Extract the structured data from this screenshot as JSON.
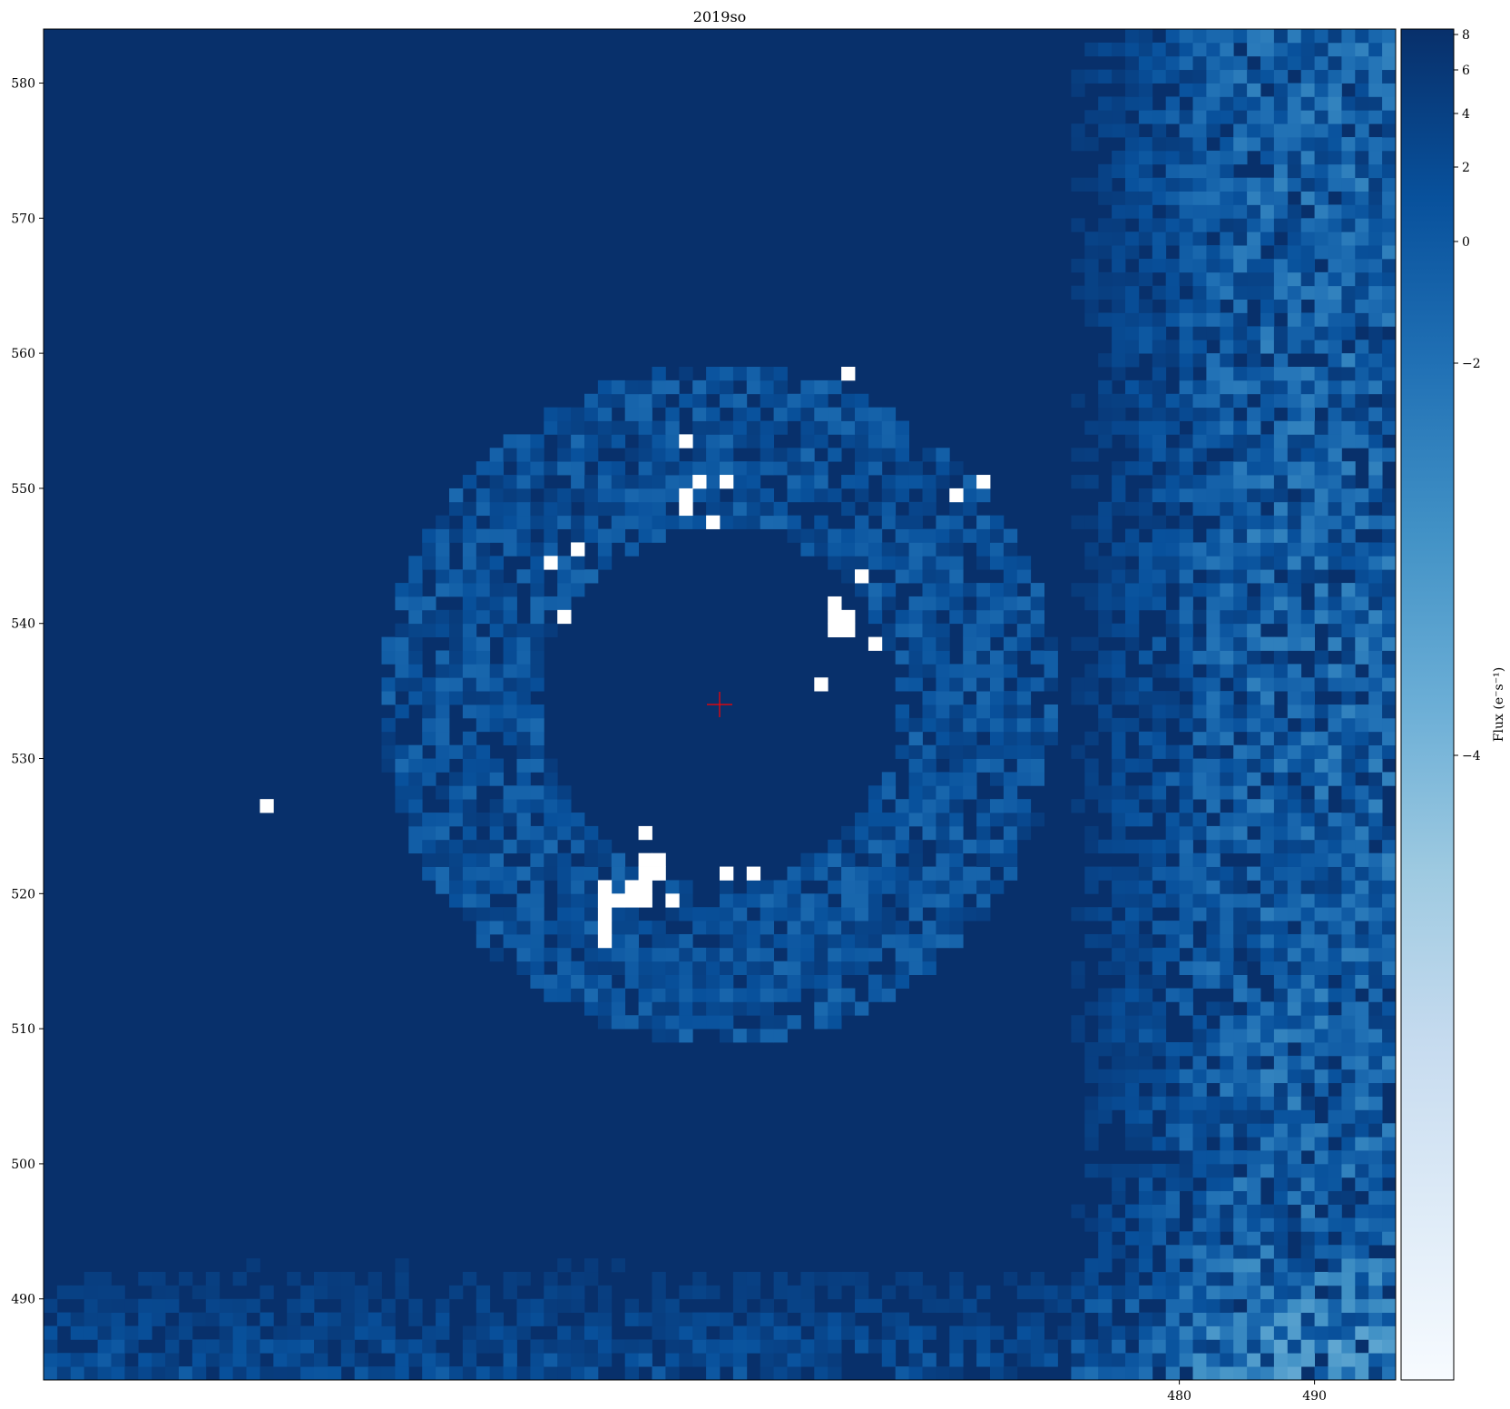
{
  "figure": {
    "title": "2019so"
  },
  "chart_data": {
    "type": "heatmap",
    "title": "2019so",
    "xlabel": "",
    "ylabel": "",
    "x_ticks": [
      480,
      490
    ],
    "y_ticks": [
      490,
      500,
      510,
      520,
      530,
      540,
      550,
      560,
      570,
      580
    ],
    "xlim": [
      396,
      496
    ],
    "ylim": [
      484,
      584
    ],
    "grid": false,
    "colormap": "Blues_r",
    "colorbar": {
      "label": "Flux (e⁻s⁻¹)",
      "ticks": [
        8,
        6,
        4,
        2,
        0,
        -2,
        -4
      ],
      "range": [
        -8,
        8.3
      ]
    },
    "marker": {
      "shape": "plus",
      "color": "#ff0000",
      "x": 446,
      "y": 534
    },
    "bright_pixels": [
      [
        455.5,
        558.5
      ],
      [
        443.5,
        553.5
      ],
      [
        446.5,
        550.5
      ],
      [
        444.5,
        550.5
      ],
      [
        443.5,
        549.5
      ],
      [
        443.5,
        548.5
      ],
      [
        445.5,
        547.5
      ],
      [
        463.5,
        549.5
      ],
      [
        465.5,
        550.5
      ],
      [
        435.5,
        545.5
      ],
      [
        433.5,
        544.5
      ],
      [
        434.5,
        540.5
      ],
      [
        456.5,
        543.5
      ],
      [
        454.5,
        541.5
      ],
      [
        454.5,
        540.5
      ],
      [
        455.5,
        540.5
      ],
      [
        454.5,
        539.5
      ],
      [
        455.5,
        539.5
      ],
      [
        457.5,
        538.5
      ],
      [
        453.5,
        535.5
      ],
      [
        412.5,
        526.5
      ],
      [
        440.5,
        524.5
      ],
      [
        440.5,
        522.5
      ],
      [
        441.5,
        522.5
      ],
      [
        440.5,
        521.5
      ],
      [
        441.5,
        521.5
      ],
      [
        439.5,
        520.5
      ],
      [
        440.5,
        520.5
      ],
      [
        437.5,
        520.5
      ],
      [
        438.5,
        519.5
      ],
      [
        439.5,
        519.5
      ],
      [
        440.5,
        519.5
      ],
      [
        442.5,
        519.5
      ],
      [
        437.5,
        519.5
      ],
      [
        437.5,
        518.5
      ],
      [
        437.5,
        517.5
      ],
      [
        437.5,
        516.5
      ],
      [
        446.5,
        521.5
      ],
      [
        448.5,
        521.5
      ]
    ]
  }
}
